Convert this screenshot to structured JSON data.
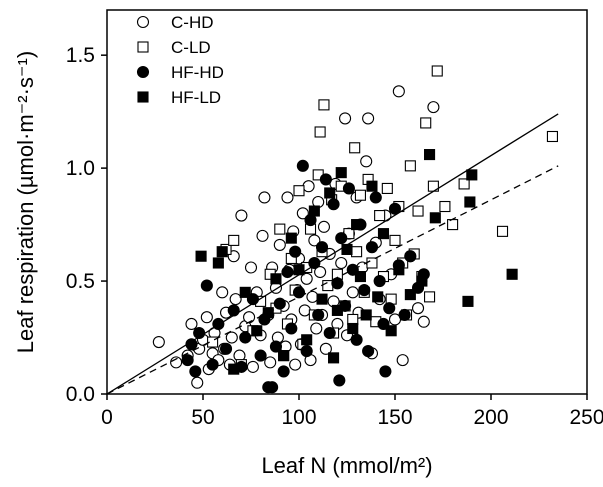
{
  "chart_data": {
    "type": "scatter",
    "title": "",
    "xlabel": "Leaf N (mmol/m²)",
    "ylabel": "Leaf respiration (µmol·m⁻²·s⁻¹)",
    "xlim": [
      0,
      250
    ],
    "ylim": [
      0,
      1.7
    ],
    "xticks": [
      0,
      50,
      100,
      150,
      200,
      250
    ],
    "yticks": [
      0.0,
      0.5,
      1.0,
      1.5
    ],
    "xtick_labels": [
      "0",
      "50",
      "100",
      "150",
      "200",
      "250"
    ],
    "ytick_labels": [
      "0.0",
      "0.5",
      "1.0",
      "1.5"
    ],
    "grid": false,
    "legend": {
      "position": "top-left"
    },
    "series": [
      {
        "name": "C-HD",
        "marker": "circle-open",
        "points": [
          [
            27,
            0.23
          ],
          [
            36,
            0.14
          ],
          [
            42,
            0.17
          ],
          [
            44,
            0.31
          ],
          [
            47,
            0.05
          ],
          [
            48,
            0.2
          ],
          [
            50,
            0.24
          ],
          [
            52,
            0.34
          ],
          [
            53,
            0.11
          ],
          [
            55,
            0.18
          ],
          [
            56,
            0.27
          ],
          [
            58,
            0.15
          ],
          [
            60,
            0.45
          ],
          [
            61,
            0.2
          ],
          [
            62,
            0.36
          ],
          [
            64,
            0.13
          ],
          [
            65,
            0.25
          ],
          [
            66,
            0.61
          ],
          [
            67,
            0.42
          ],
          [
            69,
            0.17
          ],
          [
            70,
            0.79
          ],
          [
            72,
            0.3
          ],
          [
            74,
            0.34
          ],
          [
            75,
            0.56
          ],
          [
            76,
            0.12
          ],
          [
            78,
            0.45
          ],
          [
            80,
            0.26
          ],
          [
            81,
            0.7
          ],
          [
            82,
            0.87
          ],
          [
            84,
            0.35
          ],
          [
            85,
            0.14
          ],
          [
            86,
            0.56
          ],
          [
            88,
            0.47
          ],
          [
            89,
            0.25
          ],
          [
            90,
            0.66
          ],
          [
            92,
            0.39
          ],
          [
            93,
            0.21
          ],
          [
            94,
            0.87
          ],
          [
            95,
            0.55
          ],
          [
            96,
            0.33
          ],
          [
            97,
            0.72
          ],
          [
            98,
            0.13
          ],
          [
            99,
            0.46
          ],
          [
            100,
            0.6
          ],
          [
            101,
            0.22
          ],
          [
            102,
            0.8
          ],
          [
            103,
            0.37
          ],
          [
            104,
            0.51
          ],
          [
            105,
            0.92
          ],
          [
            106,
            0.15
          ],
          [
            107,
            0.43
          ],
          [
            108,
            0.68
          ],
          [
            109,
            0.29
          ],
          [
            110,
            0.85
          ],
          [
            111,
            0.54
          ],
          [
            112,
            0.35
          ],
          [
            113,
            0.74
          ],
          [
            114,
            0.2
          ],
          [
            116,
            0.62
          ],
          [
            118,
            0.41
          ],
          [
            119,
            0.93
          ],
          [
            120,
            0.31
          ],
          [
            122,
            0.58
          ],
          [
            124,
            1.22
          ],
          [
            125,
            0.26
          ],
          [
            126,
            0.71
          ],
          [
            128,
            0.45
          ],
          [
            130,
            0.87
          ],
          [
            131,
            0.36
          ],
          [
            133,
            0.56
          ],
          [
            135,
            1.03
          ],
          [
            136,
            1.22
          ],
          [
            138,
            0.18
          ],
          [
            140,
            0.67
          ],
          [
            142,
            0.42
          ],
          [
            145,
            0.79
          ],
          [
            148,
            0.53
          ],
          [
            150,
            0.33
          ],
          [
            152,
            1.34
          ],
          [
            154,
            0.15
          ],
          [
            158,
            0.61
          ],
          [
            162,
            0.38
          ],
          [
            165,
            0.32
          ],
          [
            170,
            1.27
          ]
        ]
      },
      {
        "name": "C-LD",
        "marker": "square-open",
        "points": [
          [
            55,
            0.23
          ],
          [
            62,
            0.64
          ],
          [
            66,
            0.68
          ],
          [
            70,
            0.13
          ],
          [
            76,
            0.28
          ],
          [
            80,
            0.41
          ],
          [
            85,
            0.53
          ],
          [
            88,
            0.38
          ],
          [
            90,
            0.73
          ],
          [
            92,
            0.17
          ],
          [
            94,
            0.31
          ],
          [
            96,
            0.6
          ],
          [
            98,
            0.46
          ],
          [
            100,
            0.9
          ],
          [
            102,
            0.22
          ],
          [
            104,
            0.56
          ],
          [
            106,
            0.73
          ],
          [
            108,
            0.35
          ],
          [
            110,
            0.97
          ],
          [
            111,
            1.16
          ],
          [
            112,
            0.63
          ],
          [
            113,
            1.28
          ],
          [
            115,
            0.48
          ],
          [
            117,
            0.86
          ],
          [
            118,
            0.27
          ],
          [
            120,
            0.53
          ],
          [
            122,
            0.92
          ],
          [
            124,
            0.39
          ],
          [
            126,
            0.71
          ],
          [
            128,
            0.33
          ],
          [
            129,
            1.09
          ],
          [
            130,
            0.63
          ],
          [
            132,
            0.88
          ],
          [
            134,
            0.45
          ],
          [
            136,
            0.95
          ],
          [
            138,
            0.58
          ],
          [
            140,
            0.32
          ],
          [
            142,
            0.79
          ],
          [
            144,
            0.52
          ],
          [
            146,
            0.91
          ],
          [
            148,
            0.42
          ],
          [
            150,
            0.68
          ],
          [
            152,
            0.83
          ],
          [
            154,
            0.58
          ],
          [
            156,
            0.35
          ],
          [
            158,
            1.01
          ],
          [
            160,
            0.62
          ],
          [
            162,
            0.81
          ],
          [
            164,
            0.52
          ],
          [
            166,
            1.2
          ],
          [
            168,
            0.43
          ],
          [
            170,
            0.92
          ],
          [
            172,
            1.43
          ],
          [
            176,
            0.83
          ],
          [
            180,
            0.75
          ],
          [
            186,
            0.93
          ],
          [
            206,
            0.72
          ],
          [
            232,
            1.14
          ]
        ]
      },
      {
        "name": "HF-HD",
        "marker": "circle-filled",
        "points": [
          [
            42,
            0.15
          ],
          [
            44,
            0.22
          ],
          [
            46,
            0.1
          ],
          [
            48,
            0.27
          ],
          [
            52,
            0.48
          ],
          [
            55,
            0.13
          ],
          [
            58,
            0.31
          ],
          [
            62,
            0.2
          ],
          [
            66,
            0.37
          ],
          [
            70,
            0.12
          ],
          [
            72,
            0.25
          ],
          [
            76,
            0.42
          ],
          [
            80,
            0.17
          ],
          [
            82,
            0.33
          ],
          [
            84,
            0.03
          ],
          [
            86,
            0.03
          ],
          [
            88,
            0.21
          ],
          [
            90,
            0.4
          ],
          [
            92,
            0.1
          ],
          [
            94,
            0.54
          ],
          [
            96,
            0.29
          ],
          [
            98,
            0.63
          ],
          [
            100,
            0.45
          ],
          [
            102,
            1.01
          ],
          [
            104,
            0.19
          ],
          [
            106,
            0.77
          ],
          [
            108,
            0.58
          ],
          [
            110,
            0.35
          ],
          [
            112,
            0.65
          ],
          [
            114,
            0.95
          ],
          [
            116,
            0.27
          ],
          [
            118,
            0.84
          ],
          [
            120,
            0.49
          ],
          [
            121,
            0.06
          ],
          [
            122,
            0.69
          ],
          [
            124,
            0.39
          ],
          [
            126,
            0.91
          ],
          [
            128,
            0.55
          ],
          [
            130,
            0.24
          ],
          [
            132,
            0.75
          ],
          [
            134,
            0.46
          ],
          [
            136,
            0.19
          ],
          [
            138,
            0.65
          ],
          [
            140,
            0.87
          ],
          [
            142,
            0.5
          ],
          [
            144,
            0.31
          ],
          [
            145,
            0.1
          ],
          [
            147,
            0.38
          ],
          [
            150,
            0.82
          ],
          [
            152,
            0.57
          ],
          [
            155,
            0.35
          ],
          [
            158,
            0.61
          ],
          [
            162,
            0.47
          ],
          [
            165,
            0.53
          ]
        ]
      },
      {
        "name": "HF-LD",
        "marker": "square-filled",
        "points": [
          [
            49,
            0.61
          ],
          [
            58,
            0.58
          ],
          [
            60,
            0.63
          ],
          [
            66,
            0.11
          ],
          [
            72,
            0.45
          ],
          [
            78,
            0.28
          ],
          [
            84,
            0.36
          ],
          [
            88,
            0.51
          ],
          [
            92,
            0.17
          ],
          [
            96,
            0.69
          ],
          [
            100,
            0.55
          ],
          [
            104,
            0.24
          ],
          [
            108,
            0.81
          ],
          [
            112,
            0.42
          ],
          [
            116,
            0.89
          ],
          [
            118,
            0.16
          ],
          [
            120,
            0.37
          ],
          [
            122,
            0.98
          ],
          [
            125,
            0.64
          ],
          [
            128,
            0.29
          ],
          [
            130,
            0.75
          ],
          [
            132,
            0.52
          ],
          [
            135,
            0.35
          ],
          [
            138,
            0.92
          ],
          [
            141,
            0.43
          ],
          [
            144,
            0.71
          ],
          [
            148,
            0.28
          ],
          [
            152,
            0.55
          ],
          [
            158,
            0.44
          ],
          [
            164,
            0.5
          ],
          [
            168,
            1.06
          ],
          [
            171,
            0.78
          ],
          [
            188,
            0.41
          ],
          [
            189,
            0.85
          ],
          [
            190,
            0.97
          ],
          [
            211,
            0.53
          ]
        ]
      }
    ],
    "regression_lines": [
      {
        "style": "solid",
        "x": [
          0,
          235
        ],
        "y": [
          0,
          1.24
        ]
      },
      {
        "style": "dashed",
        "x": [
          0,
          235
        ],
        "y": [
          0,
          1.01
        ]
      }
    ]
  }
}
